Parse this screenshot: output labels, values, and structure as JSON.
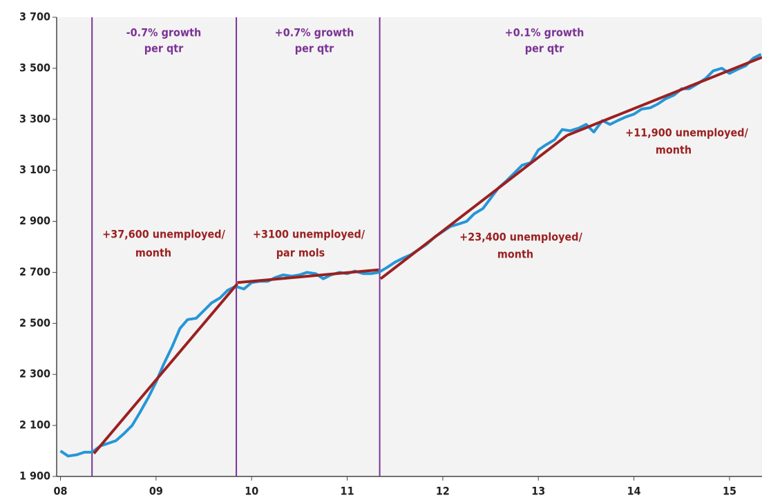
{
  "chart_data": {
    "type": "line",
    "xlim": [
      7.96,
      15.34
    ],
    "ylim": [
      1900,
      3700
    ],
    "xticks": [
      {
        "value": 8,
        "label": "08"
      },
      {
        "value": 9,
        "label": "09"
      },
      10,
      11,
      12,
      13,
      14,
      15
    ],
    "yticks": [
      {
        "value": 1900,
        "label": "1 900"
      },
      {
        "value": 2100,
        "label": "2 100"
      },
      {
        "value": 2300,
        "label": "2 300"
      },
      {
        "value": 2500,
        "label": "2 500"
      },
      {
        "value": 2700,
        "label": "2 700"
      },
      {
        "value": 2900,
        "label": "2 900"
      },
      {
        "value": 3100,
        "label": "3 100"
      },
      {
        "value": 3300,
        "label": "3 300"
      },
      {
        "value": 3500,
        "label": "3 500"
      },
      {
        "value": 3700,
        "label": "3 700"
      }
    ],
    "grid": false,
    "series": [
      {
        "color": "#2596d8",
        "x": [
          8.0,
          8.08,
          8.17,
          8.25,
          8.33,
          8.42,
          8.5,
          8.58,
          8.67,
          8.75,
          8.83,
          8.92,
          9.0,
          9.08,
          9.17,
          9.25,
          9.33,
          9.42,
          9.5,
          9.58,
          9.67,
          9.75,
          9.83,
          9.92,
          10.0,
          10.08,
          10.17,
          10.25,
          10.33,
          10.42,
          10.5,
          10.58,
          10.67,
          10.75,
          10.83,
          10.92,
          11.0,
          11.08,
          11.17,
          11.25,
          11.33,
          11.42,
          11.5,
          11.58,
          11.67,
          11.75,
          11.83,
          11.92,
          12.0,
          12.08,
          12.17,
          12.25,
          12.33,
          12.42,
          12.5,
          12.58,
          12.67,
          12.75,
          12.83,
          12.92,
          13.0,
          13.08,
          13.17,
          13.25,
          13.33,
          13.42,
          13.5,
          13.58,
          13.67,
          13.75,
          13.83,
          13.92,
          14.0,
          14.08,
          14.17,
          14.25,
          14.33,
          14.42,
          14.5,
          14.58,
          14.67,
          14.75,
          14.83,
          14.92,
          15.0,
          15.08,
          15.17,
          15.25,
          15.33
        ],
        "values": [
          2000,
          1980,
          1985,
          1995,
          1995,
          2020,
          2030,
          2040,
          2070,
          2100,
          2150,
          2210,
          2270,
          2340,
          2410,
          2480,
          2515,
          2520,
          2550,
          2580,
          2600,
          2630,
          2645,
          2635,
          2660,
          2665,
          2665,
          2680,
          2690,
          2685,
          2690,
          2700,
          2695,
          2675,
          2690,
          2700,
          2695,
          2705,
          2695,
          2695,
          2700,
          2720,
          2740,
          2755,
          2770,
          2790,
          2810,
          2840,
          2860,
          2880,
          2890,
          2900,
          2930,
          2950,
          2990,
          3030,
          3060,
          3090,
          3120,
          3130,
          3180,
          3200,
          3220,
          3260,
          3255,
          3265,
          3280,
          3250,
          3295,
          3280,
          3295,
          3310,
          3320,
          3340,
          3345,
          3360,
          3380,
          3395,
          3420,
          3420,
          3440,
          3460,
          3490,
          3500,
          3480,
          3495,
          3510,
          3540,
          3555
        ]
      }
    ],
    "trends": [
      {
        "color": "#9b2020",
        "x": [
          8.35,
          9.85
        ],
        "values": [
          1990,
          2655
        ]
      },
      {
        "color": "#9b2020",
        "x": [
          9.85,
          11.33
        ],
        "values": [
          2660,
          2710
        ]
      },
      {
        "color": "#9b2020",
        "x": [
          11.35,
          13.3
        ],
        "values": [
          2675,
          3237
        ]
      },
      {
        "color": "#9b2020",
        "x": [
          13.3,
          15.34
        ],
        "values": [
          3237,
          3543
        ]
      }
    ],
    "vlines": [
      8.33,
      9.84,
      11.34
    ],
    "vline_color": "#7b3294",
    "growth_labels": [
      [
        "-0.7% growth",
        "per qtr"
      ],
      [
        "+0.7% growth",
        "per qtr"
      ],
      [
        "+0.1% growth",
        "per qtr"
      ]
    ],
    "trend_labels": [
      [
        "+37,600 unemployed/",
        "month"
      ],
      [
        "+3100 unemployed/",
        "par mols"
      ],
      [
        "+23,400 unemployed/",
        "month"
      ],
      [
        "+11,900 unemployed/",
        "month"
      ]
    ]
  }
}
